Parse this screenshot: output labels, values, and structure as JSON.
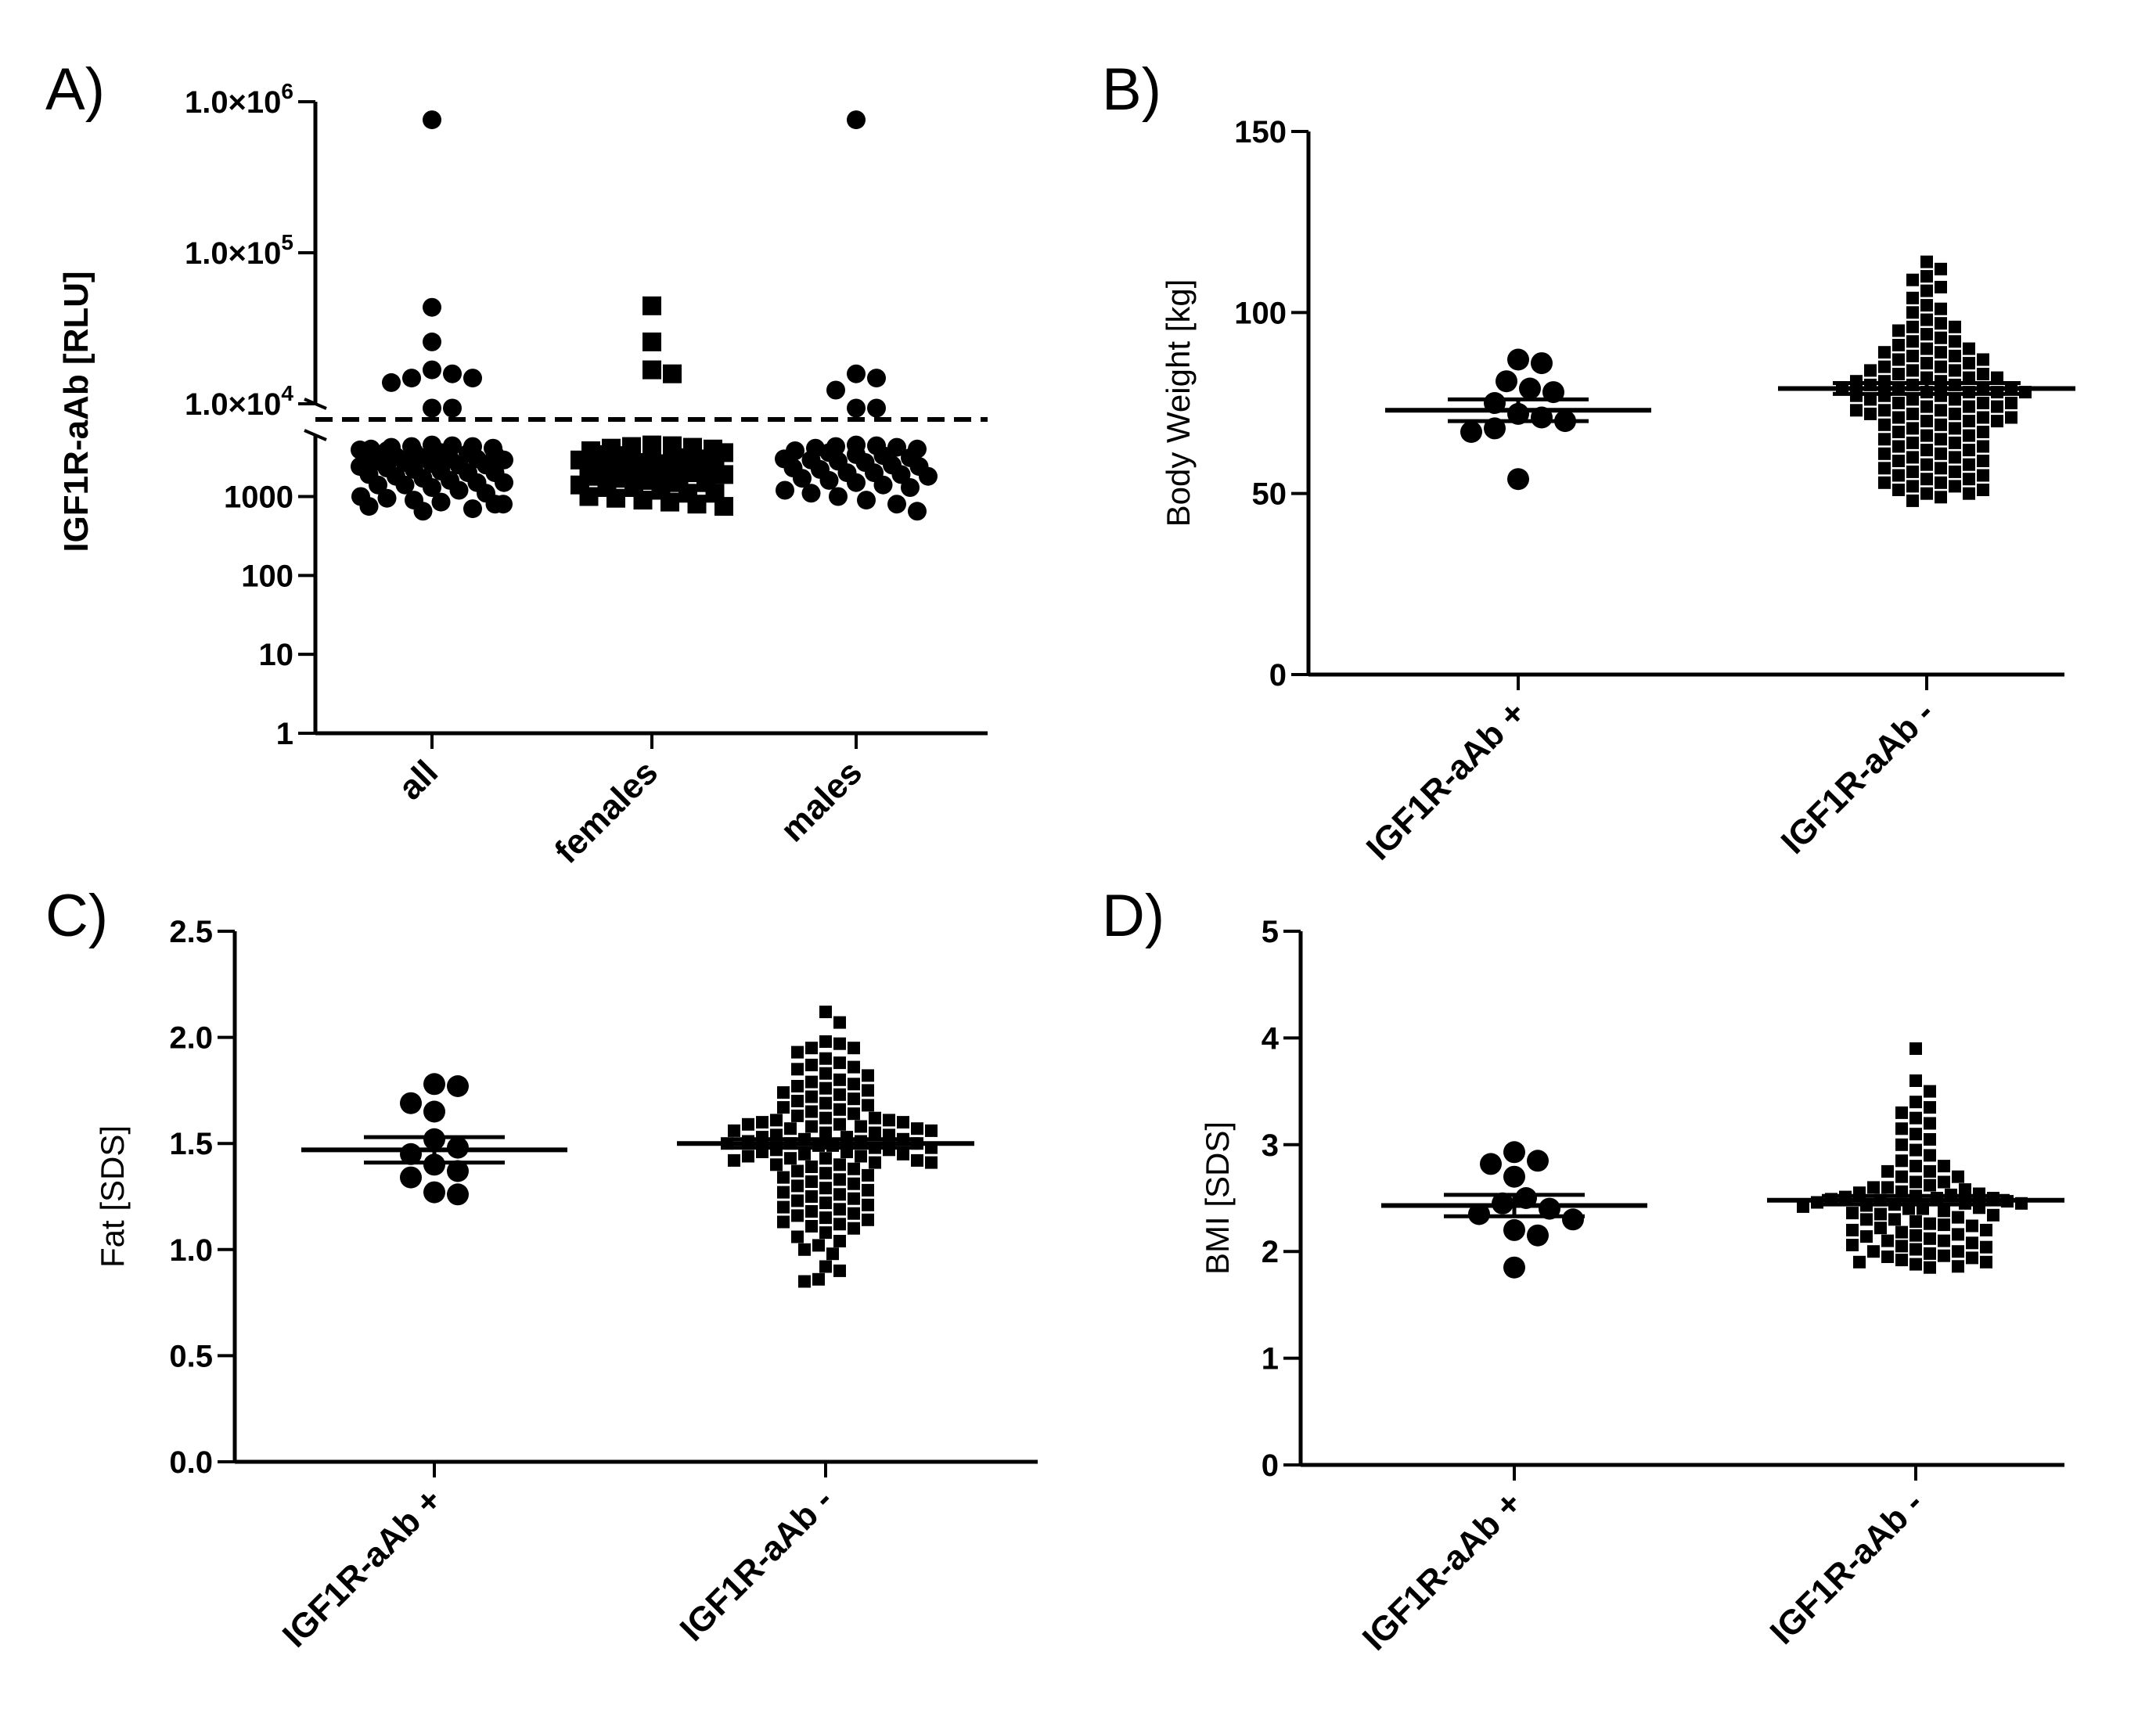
{
  "colors": {
    "ink": "#000000",
    "background": "#ffffff"
  },
  "chart_data": [
    {
      "panel": "A)",
      "type": "scatter",
      "chart_kind": "dot-plot",
      "ylabel": "IGF1R-aAb [RLU]",
      "xlabel": "",
      "yscale": "log10 (broken axis)",
      "ylim": [
        1,
        1000000
      ],
      "axis_break_between": [
        5000,
        10000
      ],
      "threshold_line": 6500,
      "yticks": [
        {
          "value": 1,
          "label": "1"
        },
        {
          "value": 10,
          "label": "10"
        },
        {
          "value": 100,
          "label": "100"
        },
        {
          "value": 1000,
          "label": "1000"
        }
      ],
      "yticks_sci": [
        {
          "value": 10000,
          "mantissa": "1.0×10",
          "exp": "4"
        },
        {
          "value": 100000,
          "mantissa": "1.0×10",
          "exp": "5"
        },
        {
          "value": 1000000,
          "mantissa": "1.0×10",
          "exp": "6"
        }
      ],
      "categories": [
        "all",
        "females",
        "males"
      ],
      "markers": [
        "circle",
        "square",
        "circle"
      ],
      "series": [
        {
          "name": "all",
          "values": [
            760000,
            44000,
            26000,
            17000,
            16000,
            15000,
            15000,
            14000,
            9500,
            9500,
            4500,
            4400,
            4300,
            4300,
            4200,
            4100,
            4000,
            3900,
            3800,
            3700,
            3600,
            3500,
            3400,
            3300,
            3200,
            3100,
            3000,
            3000,
            2900,
            2800,
            2700,
            2600,
            2500,
            2500,
            2400,
            2300,
            2200,
            2100,
            2000,
            2000,
            1900,
            1800,
            1700,
            1600,
            1500,
            1500,
            1400,
            1400,
            1300,
            1200,
            1100,
            1000,
            950,
            900,
            850,
            800,
            800,
            750,
            700,
            650
          ]
        },
        {
          "name": "females",
          "values": [
            45000,
            26000,
            17000,
            16000,
            4500,
            4400,
            4300,
            4200,
            4100,
            4000,
            3800,
            3600,
            3400,
            3300,
            3200,
            3100,
            3000,
            2900,
            2800,
            2700,
            2600,
            2500,
            2400,
            2300,
            2200,
            2100,
            2000,
            2000,
            1900,
            1800,
            1700,
            1600,
            1500,
            1500,
            1400,
            1300,
            1300,
            1200,
            1100,
            1100,
            1000,
            950,
            900,
            850,
            800,
            750
          ]
        },
        {
          "name": "males",
          "values": [
            760000,
            16000,
            15000,
            12500,
            9500,
            9500,
            4500,
            4400,
            4300,
            4200,
            4100,
            4000,
            3800,
            3600,
            3400,
            3300,
            3100,
            3000,
            2900,
            2800,
            2700,
            2500,
            2400,
            2300,
            2200,
            2000,
            2000,
            1900,
            1800,
            1700,
            1600,
            1500,
            1400,
            1300,
            1200,
            1100,
            1000,
            900,
            800,
            650
          ]
        }
      ]
    },
    {
      "panel": "B)",
      "type": "scatter",
      "chart_kind": "dot-plot with mean ± SEM",
      "ylabel": "Body Weight [kg]",
      "xlabel": "",
      "ylim": [
        0,
        150
      ],
      "yticks": [
        0,
        50,
        100,
        150
      ],
      "categories": [
        "IGF1R-aAb +",
        "IGF1R-aAb -"
      ],
      "markers": [
        "circle",
        "square"
      ],
      "series": [
        {
          "name": "IGF1R-aAb +",
          "mean": 73,
          "sem": 3,
          "values": [
            87,
            86,
            81,
            79,
            78,
            75,
            72,
            71,
            70,
            68,
            67,
            54
          ]
        },
        {
          "name": "IGF1R-aAb -",
          "mean": 79,
          "sem": 1.5,
          "values": [
            114,
            112,
            110,
            109,
            107,
            106,
            104,
            102,
            101,
            100,
            98,
            97,
            96,
            96,
            95,
            94,
            93,
            92,
            92,
            91,
            90,
            90,
            89,
            89,
            88,
            88,
            87,
            87,
            86,
            86,
            85,
            85,
            84,
            84,
            84,
            83,
            83,
            82,
            82,
            82,
            81,
            81,
            81,
            80,
            80,
            80,
            79,
            79,
            79,
            79,
            78,
            78,
            78,
            78,
            77,
            77,
            77,
            76,
            76,
            76,
            75,
            75,
            75,
            74,
            74,
            74,
            73,
            73,
            73,
            72,
            72,
            72,
            71,
            71,
            71,
            70,
            70,
            70,
            69,
            69,
            68,
            68,
            67,
            67,
            66,
            66,
            65,
            65,
            64,
            64,
            63,
            63,
            62,
            62,
            61,
            61,
            60,
            60,
            59,
            59,
            58,
            58,
            57,
            57,
            56,
            56,
            55,
            55,
            54,
            54,
            53,
            53,
            52,
            52,
            51,
            51,
            50,
            50,
            49,
            48
          ]
        }
      ]
    },
    {
      "panel": "C)",
      "type": "scatter",
      "chart_kind": "dot-plot with mean ± SEM",
      "ylabel": "Fat [SDS]",
      "xlabel": "",
      "ylim": [
        0,
        2.5
      ],
      "yticks": [
        "0.0",
        "0.5",
        "1.0",
        "1.5",
        "2.0",
        "2.5"
      ],
      "categories": [
        "IGF1R-aAb +",
        "IGF1R-aAb -"
      ],
      "markers": [
        "circle",
        "square"
      ],
      "series": [
        {
          "name": "IGF1R-aAb +",
          "mean": 1.47,
          "sem": 0.06,
          "values": [
            1.78,
            1.77,
            1.69,
            1.65,
            1.52,
            1.48,
            1.45,
            1.4,
            1.37,
            1.34,
            1.27,
            1.26
          ]
        },
        {
          "name": "IGF1R-aAb -",
          "mean": 1.5,
          "sem": 0.02,
          "values": [
            2.12,
            2.07,
            1.98,
            1.97,
            1.95,
            1.95,
            1.93,
            1.9,
            1.88,
            1.87,
            1.86,
            1.85,
            1.83,
            1.82,
            1.8,
            1.79,
            1.78,
            1.77,
            1.76,
            1.75,
            1.74,
            1.73,
            1.72,
            1.71,
            1.7,
            1.69,
            1.68,
            1.67,
            1.66,
            1.65,
            1.64,
            1.63,
            1.62,
            1.62,
            1.61,
            1.61,
            1.6,
            1.6,
            1.59,
            1.59,
            1.58,
            1.58,
            1.57,
            1.57,
            1.56,
            1.56,
            1.55,
            1.55,
            1.54,
            1.54,
            1.53,
            1.53,
            1.52,
            1.52,
            1.51,
            1.51,
            1.5,
            1.5,
            1.5,
            1.49,
            1.49,
            1.48,
            1.48,
            1.47,
            1.47,
            1.46,
            1.46,
            1.45,
            1.45,
            1.44,
            1.44,
            1.43,
            1.43,
            1.42,
            1.42,
            1.41,
            1.41,
            1.4,
            1.4,
            1.39,
            1.38,
            1.37,
            1.36,
            1.35,
            1.34,
            1.33,
            1.32,
            1.31,
            1.3,
            1.29,
            1.28,
            1.27,
            1.26,
            1.25,
            1.24,
            1.23,
            1.22,
            1.21,
            1.2,
            1.19,
            1.18,
            1.17,
            1.16,
            1.15,
            1.14,
            1.13,
            1.12,
            1.11,
            1.1,
            1.08,
            1.06,
            1.04,
            1.02,
            1.0,
            0.98,
            0.92,
            0.9,
            0.86,
            0.85
          ]
        }
      ]
    },
    {
      "panel": "D)",
      "type": "scatter",
      "chart_kind": "dot-plot with mean ± SEM",
      "ylabel": "BMI [SDS]",
      "xlabel": "",
      "ylim": [
        0,
        5
      ],
      "yticks": [
        0,
        1,
        2,
        3,
        4,
        5
      ],
      "categories": [
        "IGF1R-aAb +",
        "IGF1R-aAb -"
      ],
      "markers": [
        "circle",
        "square"
      ],
      "series": [
        {
          "name": "IGF1R-aAb +",
          "mean": 2.43,
          "sem": 0.1,
          "values": [
            2.93,
            2.85,
            2.82,
            2.7,
            2.5,
            2.45,
            2.4,
            2.35,
            2.3,
            2.2,
            2.15,
            1.85
          ]
        },
        {
          "name": "IGF1R-aAb -",
          "mean": 2.48,
          "sem": 0.04,
          "values": [
            3.9,
            3.6,
            3.5,
            3.4,
            3.35,
            3.3,
            3.25,
            3.2,
            3.15,
            3.1,
            3.05,
            3.0,
            2.95,
            2.9,
            2.85,
            2.8,
            2.8,
            2.75,
            2.75,
            2.7,
            2.7,
            2.65,
            2.65,
            2.62,
            2.6,
            2.6,
            2.58,
            2.56,
            2.55,
            2.54,
            2.53,
            2.52,
            2.51,
            2.5,
            2.5,
            2.49,
            2.48,
            2.47,
            2.46,
            2.45,
            2.45,
            2.44,
            2.43,
            2.42,
            2.41,
            2.4,
            2.4,
            2.38,
            2.36,
            2.35,
            2.34,
            2.32,
            2.3,
            2.3,
            2.28,
            2.26,
            2.25,
            2.24,
            2.22,
            2.2,
            2.2,
            2.18,
            2.16,
            2.15,
            2.14,
            2.12,
            2.1,
            2.1,
            2.08,
            2.06,
            2.05,
            2.04,
            2.02,
            2.0,
            2.0,
            1.98,
            1.96,
            1.95,
            1.94,
            1.92,
            1.9,
            1.9,
            1.88,
            1.86,
            1.85
          ]
        }
      ]
    }
  ]
}
